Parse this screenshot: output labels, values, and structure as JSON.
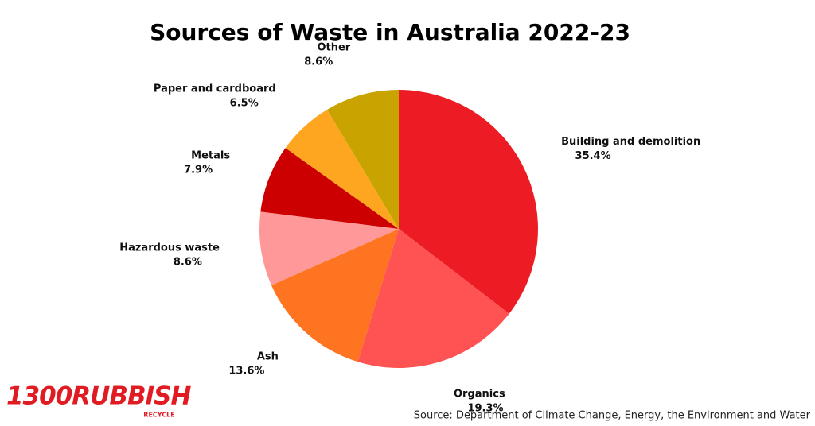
{
  "chart_data": {
    "type": "pie",
    "title": "Sources of Waste in Australia 2022-23",
    "categories": [
      "Building and demolition",
      "Organics",
      "Ash",
      "Hazardous waste",
      "Metals",
      "Paper and cardboard",
      "Other"
    ],
    "values": [
      35.4,
      19.3,
      13.6,
      8.6,
      7.9,
      6.5,
      8.6
    ],
    "value_labels": [
      "35.4%",
      "19.3%",
      "13.6%",
      "8.6%",
      "7.9%",
      "6.5%",
      "8.6%"
    ],
    "colors": [
      "#ed1c24",
      "#ff5252",
      "#ff7420",
      "#ff9999",
      "#cc0000",
      "#ffa620",
      "#c9a400"
    ],
    "source": "Source: Department of Climate Change, Energy, the Environment and Water"
  },
  "logo": {
    "name": "1300RUBBISH",
    "tagline": "RECYCLE"
  }
}
